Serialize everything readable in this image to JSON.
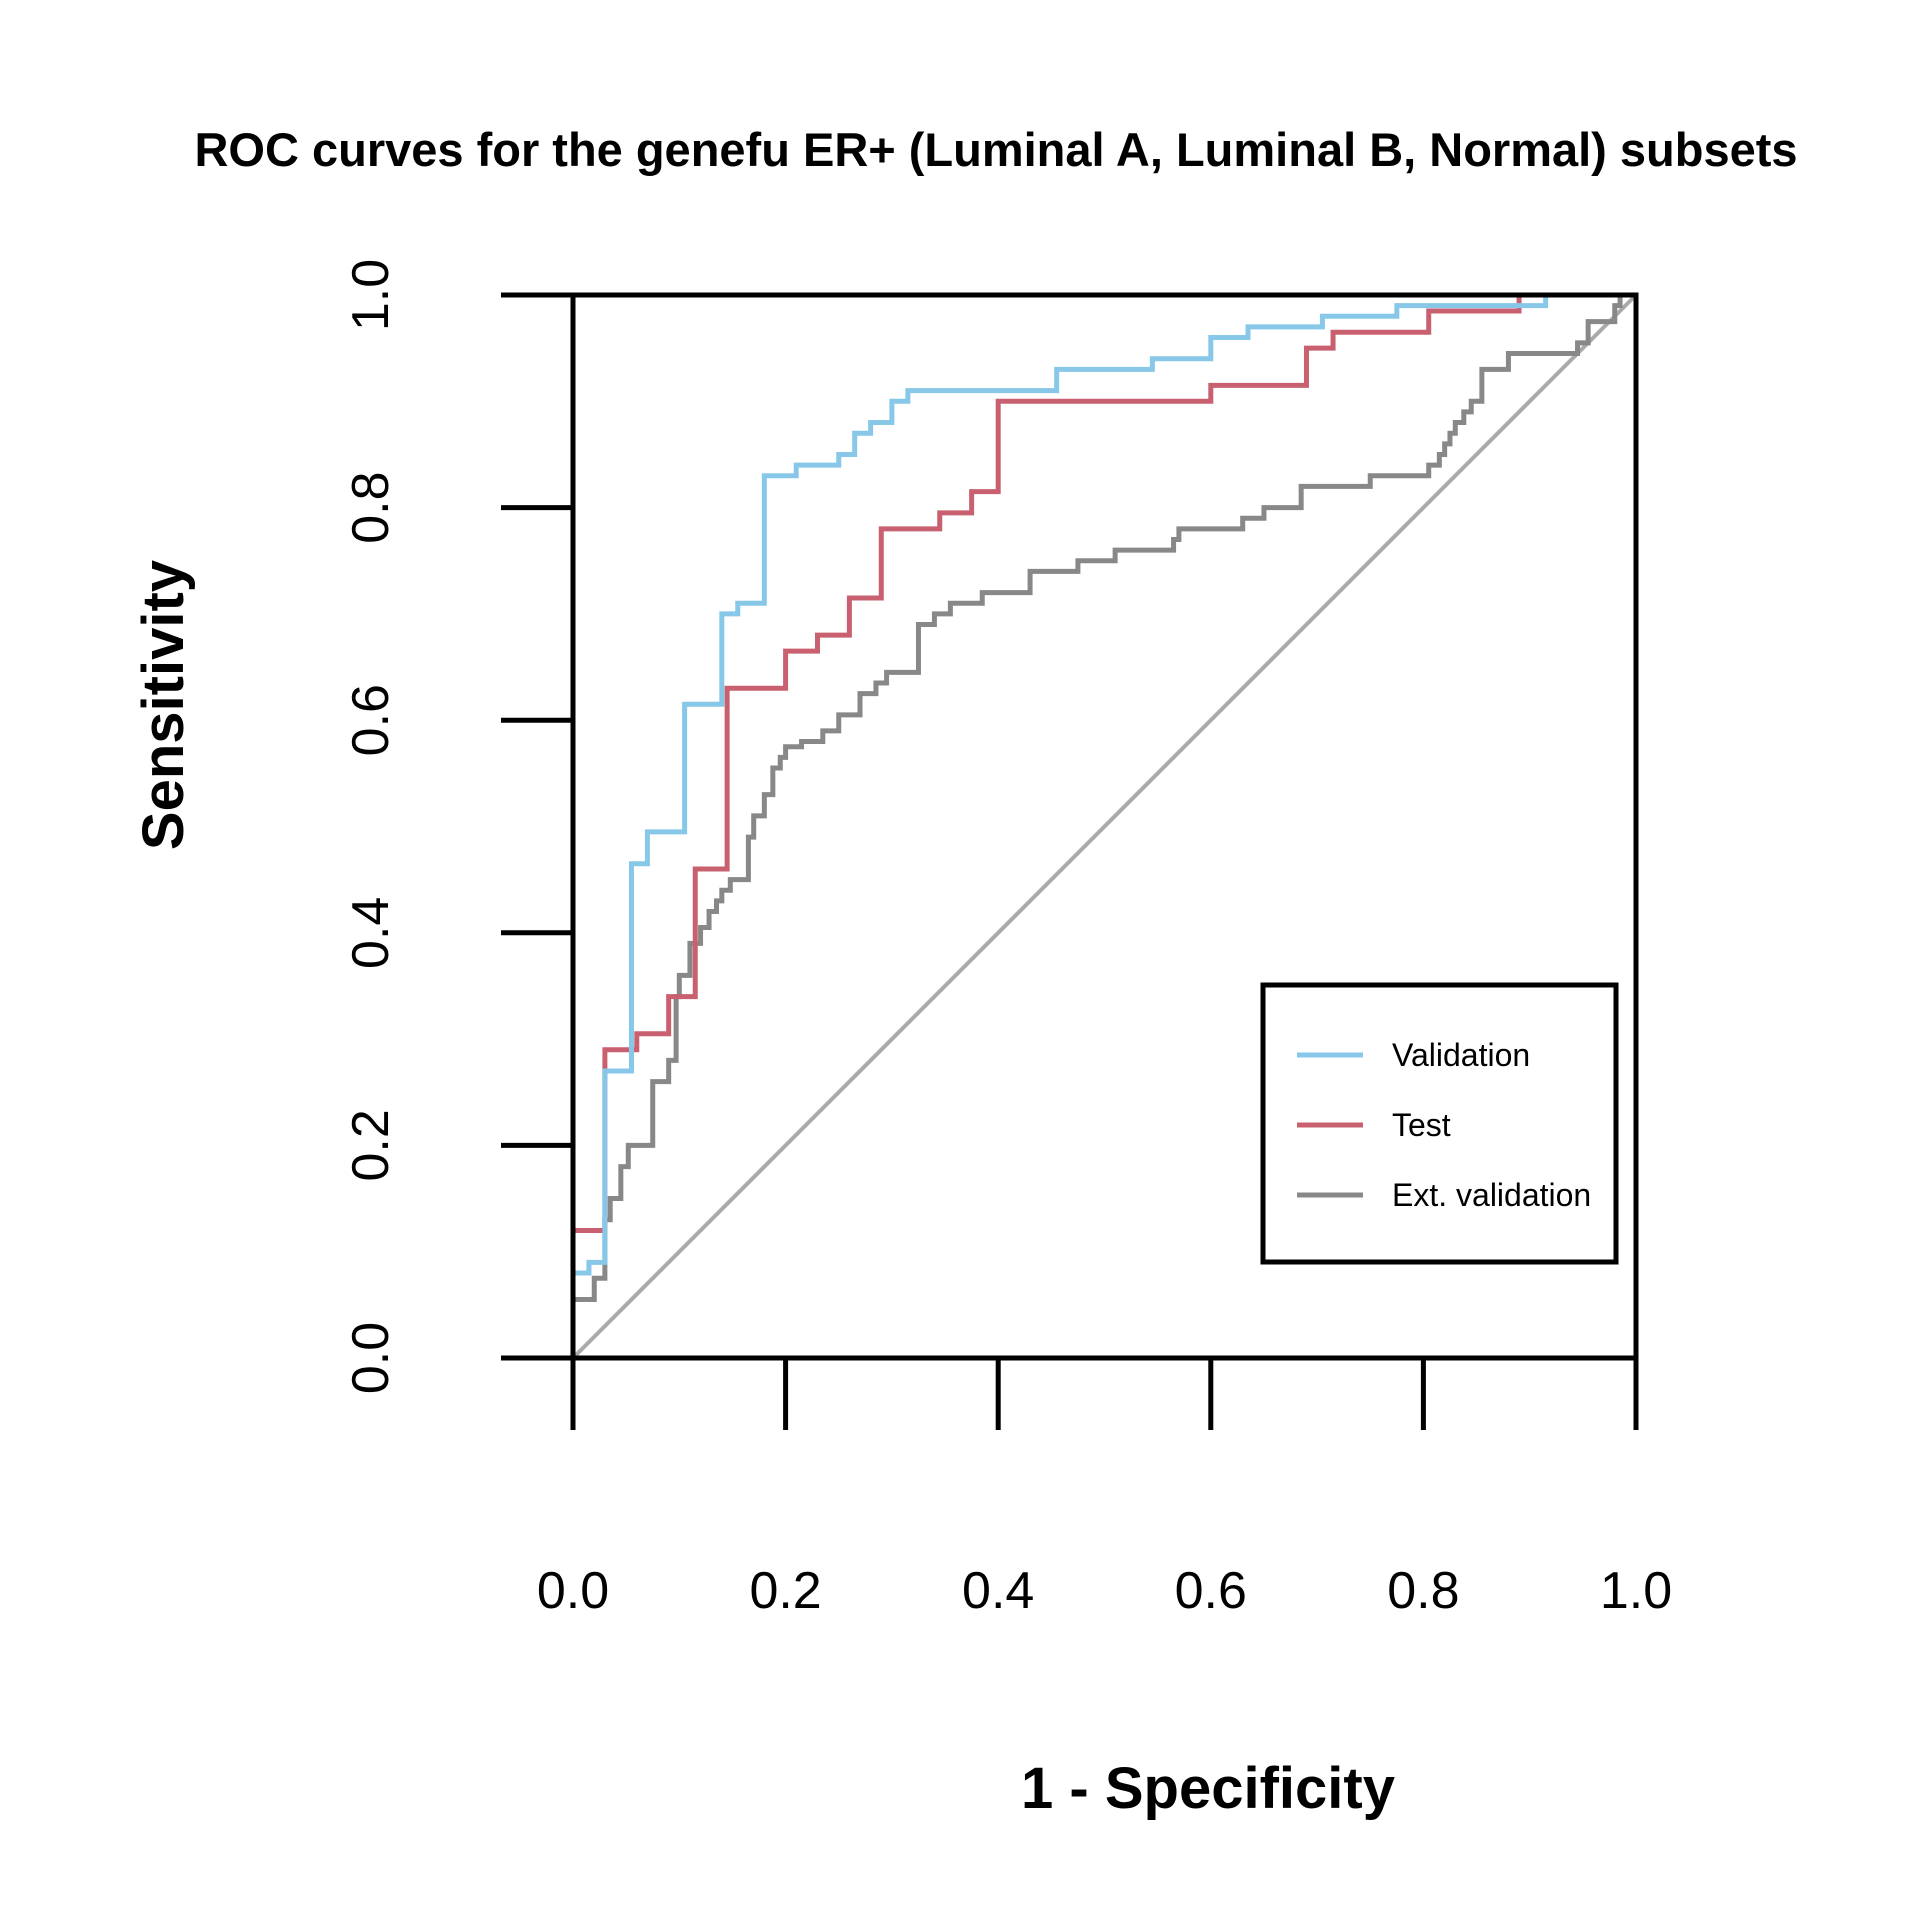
{
  "chart_data": {
    "type": "line",
    "title": "ROC curves for the genefu ER+ (Luminal A, Luminal B, Normal) subsets",
    "xlabel": "1 - Specificity",
    "ylabel": "Sensitivity",
    "xlim": [
      0,
      1
    ],
    "ylim": [
      0,
      1
    ],
    "x_ticks": [
      "0.0",
      "0.2",
      "0.4",
      "0.6",
      "0.8",
      "1.0"
    ],
    "y_ticks": [
      "0.0",
      "0.2",
      "0.4",
      "0.6",
      "0.8",
      "1.0"
    ],
    "grid": false,
    "legend_position": "bottom-right",
    "reference_line": {
      "from": [
        0,
        0
      ],
      "to": [
        1,
        1
      ],
      "color": "#aaaaaa"
    },
    "series": [
      {
        "name": "Validation",
        "color": "#87c8e8",
        "points": [
          [
            0,
            0
          ],
          [
            0,
            0.08
          ],
          [
            0.015,
            0.08
          ],
          [
            0.015,
            0.09
          ],
          [
            0.03,
            0.09
          ],
          [
            0.03,
            0.27
          ],
          [
            0.055,
            0.27
          ],
          [
            0.055,
            0.465
          ],
          [
            0.07,
            0.465
          ],
          [
            0.07,
            0.495
          ],
          [
            0.105,
            0.495
          ],
          [
            0.105,
            0.615
          ],
          [
            0.14,
            0.615
          ],
          [
            0.14,
            0.7
          ],
          [
            0.155,
            0.7
          ],
          [
            0.155,
            0.71
          ],
          [
            0.18,
            0.71
          ],
          [
            0.18,
            0.83
          ],
          [
            0.21,
            0.83
          ],
          [
            0.21,
            0.84
          ],
          [
            0.25,
            0.84
          ],
          [
            0.25,
            0.85
          ],
          [
            0.265,
            0.85
          ],
          [
            0.265,
            0.87
          ],
          [
            0.28,
            0.87
          ],
          [
            0.28,
            0.88
          ],
          [
            0.3,
            0.88
          ],
          [
            0.3,
            0.9
          ],
          [
            0.315,
            0.9
          ],
          [
            0.315,
            0.91
          ],
          [
            0.455,
            0.91
          ],
          [
            0.455,
            0.93
          ],
          [
            0.545,
            0.93
          ],
          [
            0.545,
            0.94
          ],
          [
            0.6,
            0.94
          ],
          [
            0.6,
            0.96
          ],
          [
            0.635,
            0.96
          ],
          [
            0.635,
            0.97
          ],
          [
            0.705,
            0.97
          ],
          [
            0.705,
            0.98
          ],
          [
            0.775,
            0.98
          ],
          [
            0.775,
            0.99
          ],
          [
            0.915,
            0.99
          ],
          [
            0.915,
            1.0
          ],
          [
            1.0,
            1.0
          ]
        ]
      },
      {
        "name": "Test",
        "color": "#c86070",
        "points": [
          [
            0,
            0
          ],
          [
            0,
            0.12
          ],
          [
            0.03,
            0.12
          ],
          [
            0.03,
            0.29
          ],
          [
            0.06,
            0.29
          ],
          [
            0.06,
            0.305
          ],
          [
            0.09,
            0.305
          ],
          [
            0.09,
            0.34
          ],
          [
            0.115,
            0.34
          ],
          [
            0.115,
            0.46
          ],
          [
            0.145,
            0.46
          ],
          [
            0.145,
            0.63
          ],
          [
            0.2,
            0.63
          ],
          [
            0.2,
            0.665
          ],
          [
            0.23,
            0.665
          ],
          [
            0.23,
            0.68
          ],
          [
            0.26,
            0.68
          ],
          [
            0.26,
            0.715
          ],
          [
            0.29,
            0.715
          ],
          [
            0.29,
            0.78
          ],
          [
            0.345,
            0.78
          ],
          [
            0.345,
            0.795
          ],
          [
            0.375,
            0.795
          ],
          [
            0.375,
            0.815
          ],
          [
            0.4,
            0.815
          ],
          [
            0.4,
            0.9
          ],
          [
            0.6,
            0.9
          ],
          [
            0.6,
            0.915
          ],
          [
            0.69,
            0.915
          ],
          [
            0.69,
            0.95
          ],
          [
            0.715,
            0.95
          ],
          [
            0.715,
            0.965
          ],
          [
            0.805,
            0.965
          ],
          [
            0.805,
            0.985
          ],
          [
            0.89,
            0.985
          ],
          [
            0.89,
            1.0
          ],
          [
            1.0,
            1.0
          ]
        ]
      },
      {
        "name": "Ext. validation",
        "color": "#888888",
        "points": [
          [
            0,
            0
          ],
          [
            0,
            0.055
          ],
          [
            0.02,
            0.055
          ],
          [
            0.02,
            0.075
          ],
          [
            0.03,
            0.075
          ],
          [
            0.03,
            0.13
          ],
          [
            0.035,
            0.13
          ],
          [
            0.035,
            0.15
          ],
          [
            0.045,
            0.15
          ],
          [
            0.045,
            0.18
          ],
          [
            0.052,
            0.18
          ],
          [
            0.052,
            0.2
          ],
          [
            0.075,
            0.2
          ],
          [
            0.075,
            0.26
          ],
          [
            0.09,
            0.26
          ],
          [
            0.09,
            0.28
          ],
          [
            0.097,
            0.28
          ],
          [
            0.097,
            0.34
          ],
          [
            0.1,
            0.34
          ],
          [
            0.1,
            0.36
          ],
          [
            0.11,
            0.36
          ],
          [
            0.11,
            0.39
          ],
          [
            0.12,
            0.39
          ],
          [
            0.12,
            0.405
          ],
          [
            0.128,
            0.405
          ],
          [
            0.128,
            0.42
          ],
          [
            0.135,
            0.42
          ],
          [
            0.135,
            0.43
          ],
          [
            0.14,
            0.43
          ],
          [
            0.14,
            0.44
          ],
          [
            0.148,
            0.44
          ],
          [
            0.148,
            0.45
          ],
          [
            0.165,
            0.45
          ],
          [
            0.165,
            0.49
          ],
          [
            0.17,
            0.49
          ],
          [
            0.17,
            0.51
          ],
          [
            0.18,
            0.51
          ],
          [
            0.18,
            0.53
          ],
          [
            0.188,
            0.53
          ],
          [
            0.188,
            0.555
          ],
          [
            0.195,
            0.555
          ],
          [
            0.195,
            0.565
          ],
          [
            0.2,
            0.565
          ],
          [
            0.2,
            0.575
          ],
          [
            0.215,
            0.575
          ],
          [
            0.215,
            0.58
          ],
          [
            0.235,
            0.58
          ],
          [
            0.235,
            0.59
          ],
          [
            0.25,
            0.59
          ],
          [
            0.25,
            0.605
          ],
          [
            0.27,
            0.605
          ],
          [
            0.27,
            0.625
          ],
          [
            0.285,
            0.625
          ],
          [
            0.285,
            0.635
          ],
          [
            0.295,
            0.635
          ],
          [
            0.295,
            0.645
          ],
          [
            0.325,
            0.645
          ],
          [
            0.325,
            0.69
          ],
          [
            0.34,
            0.69
          ],
          [
            0.34,
            0.7
          ],
          [
            0.355,
            0.7
          ],
          [
            0.355,
            0.71
          ],
          [
            0.385,
            0.71
          ],
          [
            0.385,
            0.72
          ],
          [
            0.43,
            0.72
          ],
          [
            0.43,
            0.74
          ],
          [
            0.475,
            0.74
          ],
          [
            0.475,
            0.75
          ],
          [
            0.51,
            0.75
          ],
          [
            0.51,
            0.76
          ],
          [
            0.565,
            0.76
          ],
          [
            0.565,
            0.77
          ],
          [
            0.57,
            0.77
          ],
          [
            0.57,
            0.78
          ],
          [
            0.63,
            0.78
          ],
          [
            0.63,
            0.79
          ],
          [
            0.65,
            0.79
          ],
          [
            0.65,
            0.8
          ],
          [
            0.685,
            0.8
          ],
          [
            0.685,
            0.82
          ],
          [
            0.75,
            0.82
          ],
          [
            0.75,
            0.83
          ],
          [
            0.805,
            0.83
          ],
          [
            0.805,
            0.84
          ],
          [
            0.815,
            0.84
          ],
          [
            0.815,
            0.85
          ],
          [
            0.82,
            0.85
          ],
          [
            0.82,
            0.86
          ],
          [
            0.825,
            0.86
          ],
          [
            0.825,
            0.87
          ],
          [
            0.83,
            0.87
          ],
          [
            0.83,
            0.88
          ],
          [
            0.838,
            0.88
          ],
          [
            0.838,
            0.89
          ],
          [
            0.845,
            0.89
          ],
          [
            0.845,
            0.9
          ],
          [
            0.855,
            0.9
          ],
          [
            0.855,
            0.93
          ],
          [
            0.88,
            0.93
          ],
          [
            0.88,
            0.945
          ],
          [
            0.945,
            0.945
          ],
          [
            0.945,
            0.955
          ],
          [
            0.955,
            0.955
          ],
          [
            0.955,
            0.975
          ],
          [
            0.98,
            0.975
          ],
          [
            0.98,
            0.99
          ],
          [
            0.985,
            0.99
          ],
          [
            0.985,
            1.0
          ],
          [
            1.0,
            1.0
          ]
        ]
      }
    ]
  }
}
